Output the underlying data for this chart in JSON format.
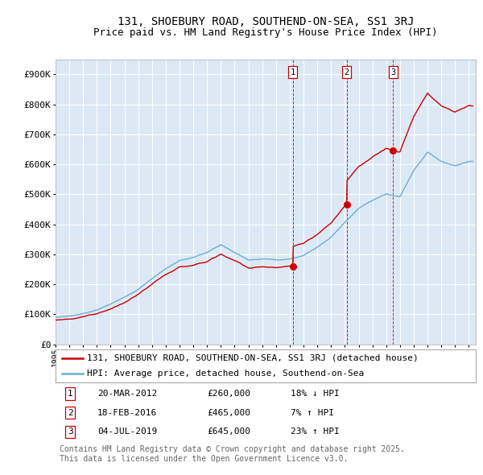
{
  "title": "131, SHOEBURY ROAD, SOUTHEND-ON-SEA, SS1 3RJ",
  "subtitle": "Price paid vs. HM Land Registry's House Price Index (HPI)",
  "background_color": "#ffffff",
  "plot_bg_color": "#dce9f5",
  "ylim": [
    0,
    950000
  ],
  "yticks": [
    0,
    100000,
    200000,
    300000,
    400000,
    500000,
    600000,
    700000,
    800000,
    900000
  ],
  "ytick_labels": [
    "£0",
    "£100K",
    "£200K",
    "£300K",
    "£400K",
    "£500K",
    "£600K",
    "£700K",
    "£800K",
    "£900K"
  ],
  "xlim_start": 1995,
  "xlim_end": 2025.5,
  "sale_dates": [
    2012.22,
    2016.13,
    2019.51
  ],
  "sale_prices": [
    260000,
    465000,
    645000
  ],
  "sale_labels": [
    "1",
    "2",
    "3"
  ],
  "legend_entries": [
    "131, SHOEBURY ROAD, SOUTHEND-ON-SEA, SS1 3RJ (detached house)",
    "HPI: Average price, detached house, Southend-on-Sea"
  ],
  "table_rows": [
    [
      "1",
      "20-MAR-2012",
      "£260,000",
      "18% ↓ HPI"
    ],
    [
      "2",
      "18-FEB-2016",
      "£465,000",
      "7% ↑ HPI"
    ],
    [
      "3",
      "04-JUL-2019",
      "£645,000",
      "23% ↑ HPI"
    ]
  ],
  "footer": "Contains HM Land Registry data © Crown copyright and database right 2025.\nThis data is licensed under the Open Government Licence v3.0.",
  "hpi_color": "#6baed6",
  "price_color": "#cc0000",
  "dashed_line_color": "#cc0000",
  "grid_color": "#ffffff",
  "title_fontsize": 10,
  "subtitle_fontsize": 9,
  "axis_fontsize": 8,
  "legend_fontsize": 8,
  "table_fontsize": 8,
  "footer_fontsize": 7
}
